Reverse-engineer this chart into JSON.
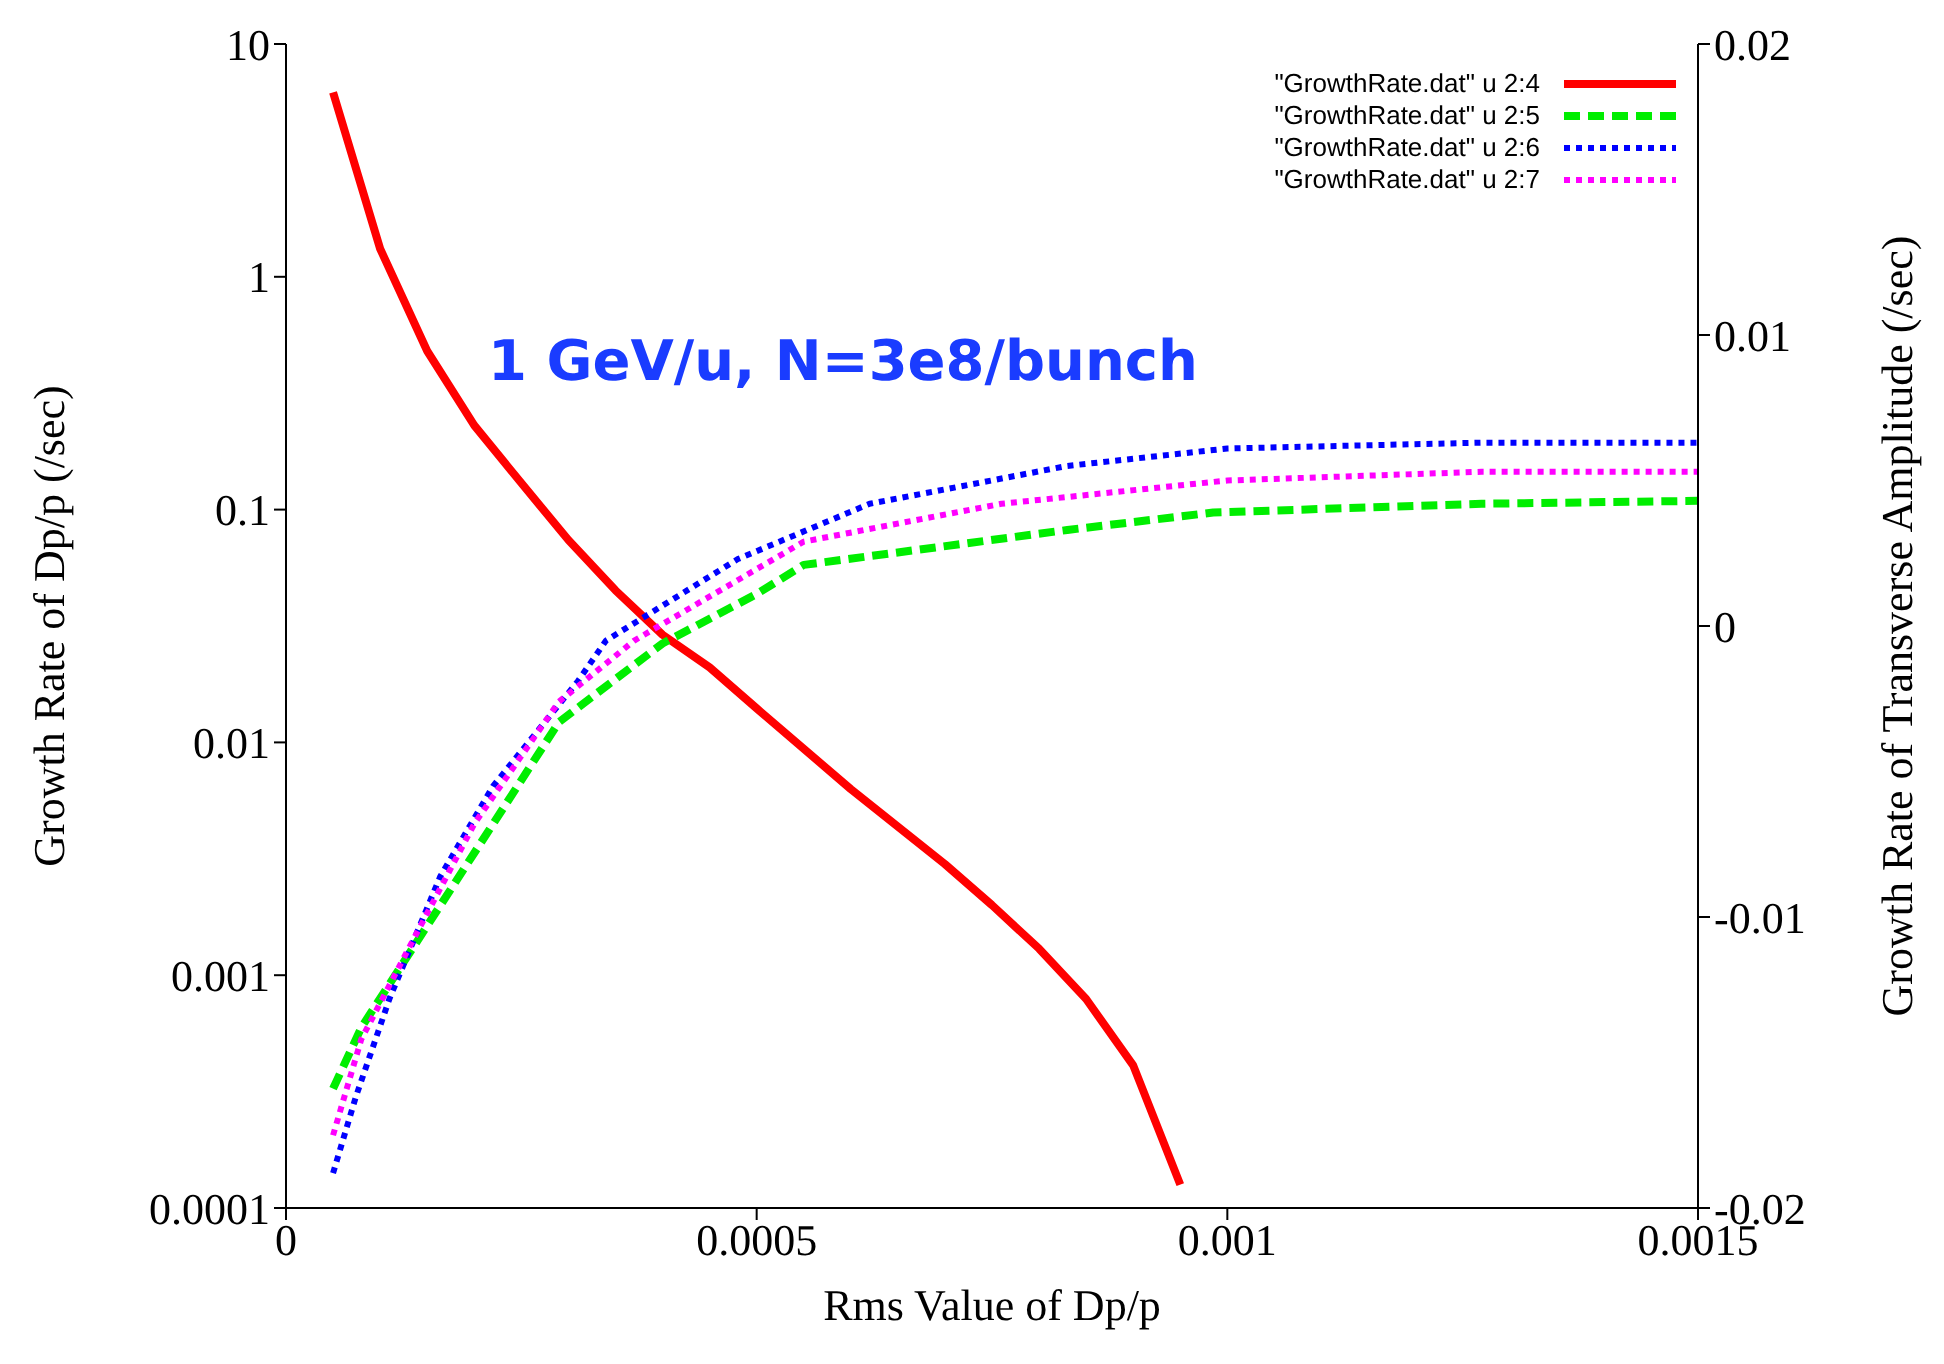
{
  "chart_data": {
    "type": "line",
    "xlabel": "Rms Value of Dp/p",
    "ylabel": "Growth Rate of Dp/p (/sec)",
    "y2label": "Growth Rate of Transverse Amplitude (/sec)",
    "annotations": [
      "1 GeV/u, N=3e8/bunch"
    ],
    "xlim": [
      0,
      0.0015
    ],
    "xticks": [
      0,
      0.0005,
      0.001,
      0.0015
    ],
    "ylim": [
      0.0001,
      10
    ],
    "yticks": [
      0.0001,
      0.001,
      0.01,
      0.1,
      1,
      10
    ],
    "log": "y",
    "y2lim": [
      -0.02,
      0.02
    ],
    "y2ticks": [
      -0.02,
      -0.01,
      0,
      0.01,
      0.02
    ],
    "legend": "top right",
    "marker": "none",
    "series": [
      {
        "name": "\"GrowthRate.dat\" u 2:4",
        "color": "#ff0000",
        "line_style": "solid",
        "x": [
          5e-05,
          0.0001,
          0.00015,
          0.0002,
          0.00025,
          0.0003,
          0.00035,
          0.0004,
          0.00045,
          0.0005,
          0.0006,
          0.0007,
          0.00075,
          0.0008,
          0.00085,
          0.0009,
          0.00095
        ],
        "values": [
          6.2,
          1.32,
          0.48,
          0.23,
          0.13,
          0.074,
          0.045,
          0.029,
          0.021,
          0.014,
          0.0063,
          0.003,
          0.002,
          0.0013,
          0.00079,
          0.00041,
          0.000126
        ]
      },
      {
        "name": "\"GrowthRate.dat\" u 2:5",
        "color": "#00ee00",
        "line_style": "dashed",
        "axis": "y2",
        "x": [
          5e-05,
          8e-05,
          0.00013,
          0.0002,
          0.00029,
          0.0004,
          0.0005,
          0.00055,
          0.00069,
          0.00083,
          0.000985,
          0.00127,
          0.0015
        ],
        "values": [
          -0.0159,
          -0.0138,
          -0.0113,
          -0.0078,
          -0.0033,
          -0.0006,
          0.0011,
          0.0021,
          0.0027,
          0.0033,
          0.0039,
          0.0042,
          0.0043
        ]
      },
      {
        "name": "\"GrowthRate.dat\" u 2:6",
        "color": "#0000ff",
        "line_style": "dotted",
        "axis": "y2",
        "x": [
          5e-05,
          7.4e-05,
          0.00011,
          0.000164,
          0.00022,
          0.00031,
          0.00034,
          0.00048,
          0.00062,
          0.00083,
          0.001,
          0.00127,
          0.0015
        ],
        "values": [
          -0.0188,
          -0.0162,
          -0.0128,
          -0.0086,
          -0.0055,
          -0.0019,
          -0.0005,
          0.0023,
          0.0042,
          0.0055,
          0.0061,
          0.0063,
          0.0063
        ]
      },
      {
        "name": "\"GrowthRate.dat\" u 2:7",
        "color": "#ff00ff",
        "line_style": "dotted",
        "axis": "y2",
        "x": [
          5e-05,
          8e-05,
          0.00013,
          0.0002,
          0.00029,
          0.00037,
          0.00055,
          0.00076,
          0.001,
          0.00127,
          0.0015
        ],
        "values": [
          -0.0175,
          -0.0142,
          -0.0111,
          -0.0068,
          -0.0026,
          -0.0005,
          0.0029,
          0.0042,
          0.005,
          0.0053,
          0.0053
        ]
      }
    ]
  }
}
